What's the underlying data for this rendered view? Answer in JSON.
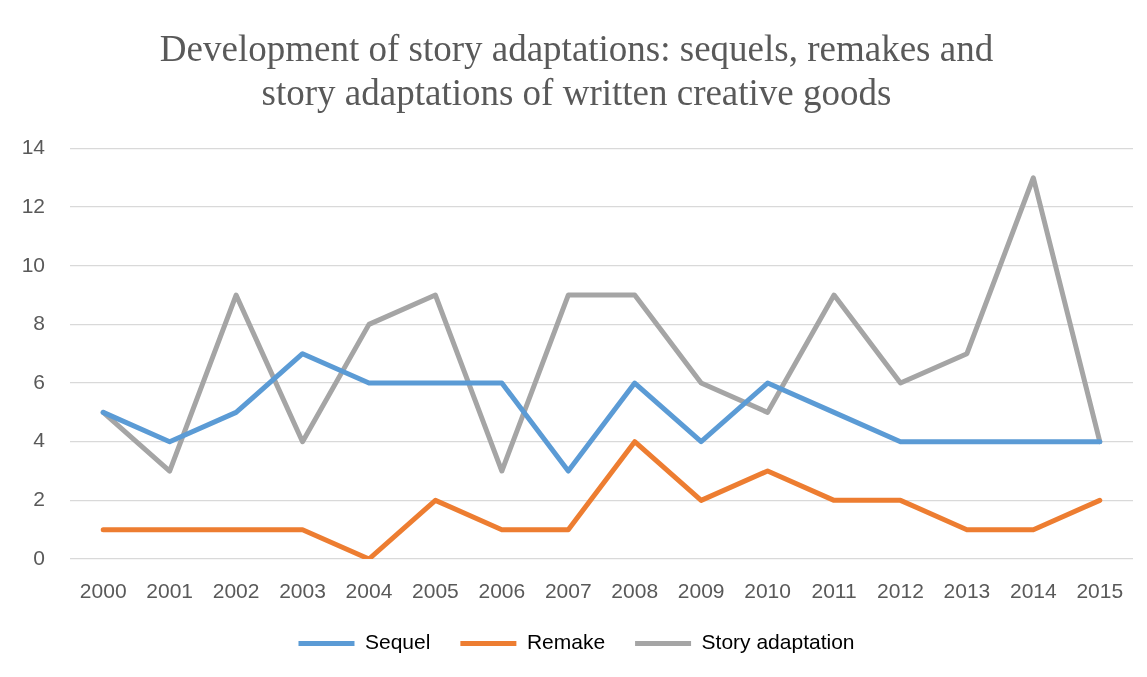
{
  "chart_data": {
    "type": "line",
    "title": [
      "Development of story adaptations: sequels, remakes and",
      "story adaptations of written creative goods"
    ],
    "categories": [
      "2000",
      "2001",
      "2002",
      "2003",
      "2004",
      "2005",
      "2006",
      "2007",
      "2008",
      "2009",
      "2010",
      "2011",
      "2012",
      "2013",
      "2014",
      "2015"
    ],
    "series": [
      {
        "name": "Sequel",
        "color": "#5b9bd5",
        "values": [
          5,
          4,
          5,
          7,
          6,
          6,
          6,
          3,
          6,
          4,
          6,
          5,
          4,
          4,
          4,
          4
        ]
      },
      {
        "name": "Remake",
        "color": "#ed7d31",
        "values": [
          1,
          1,
          1,
          1,
          0,
          2,
          1,
          1,
          4,
          2,
          3,
          2,
          2,
          1,
          1,
          2
        ]
      },
      {
        "name": "Story adaptation",
        "color": "#a5a5a5",
        "values": [
          5,
          3,
          9,
          4,
          8,
          9,
          3,
          9,
          9,
          6,
          5,
          9,
          6,
          7,
          13,
          4
        ]
      }
    ],
    "ylim": [
      0,
      14
    ],
    "yticks": [
      0,
      2,
      4,
      6,
      8,
      10,
      12,
      14
    ],
    "grid": "y",
    "legend": "bottom",
    "marker": "none",
    "line_style": "solid"
  }
}
